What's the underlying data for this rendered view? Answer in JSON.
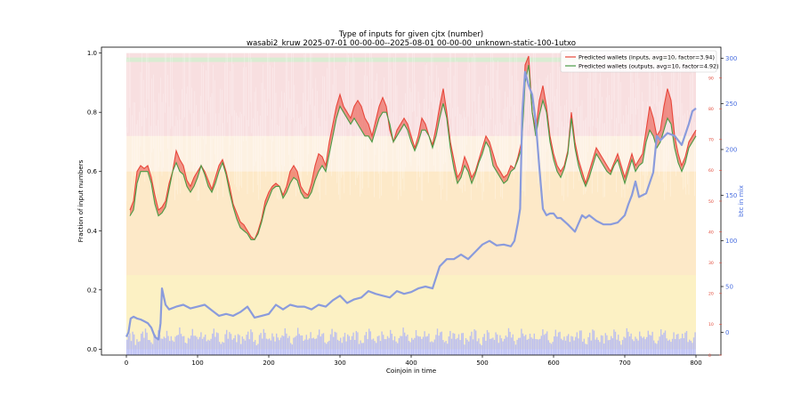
{
  "chart_data": {
    "type": "line",
    "title": "Type of inputs for given cjtx (number)",
    "subtitle": "wasabi2_kruw 2025-07-01 00-00-00--2025-08-01 00-00-00_unknown-static-100-1utxo",
    "xlabel": "Coinjoin in time",
    "ylabel": "Fraction of input numbers",
    "y2label": "btc in mix",
    "xlim": [
      -35,
      835
    ],
    "ylim": [
      -0.02,
      1.02
    ],
    "y2lim": [
      -25,
      312
    ],
    "y3lim": [
      0,
      100
    ],
    "xticks": [
      0,
      100,
      200,
      300,
      400,
      500,
      600,
      700,
      800
    ],
    "yticks": [
      "0.0",
      "0.2",
      "0.4",
      "0.6",
      "0.8",
      "1.0"
    ],
    "y2ticks": [
      0,
      50,
      100,
      150,
      200,
      250,
      300
    ],
    "y3ticks": [
      0,
      10,
      20,
      30,
      40,
      50,
      60,
      70,
      80,
      90
    ],
    "grid": false,
    "legend_position": "top-right",
    "colors": {
      "inputs": "#e8473b",
      "outputs": "#4a9b45",
      "btc": "#8a9bdc",
      "right_axis_btc": "#4a6fe0",
      "right_axis_count": "#e24a3a",
      "band_top": "#f8dfe0",
      "band_mid": "#fdf1e2",
      "band_low": "#fde9c8",
      "band_bottom": "#fcf1c4",
      "bars": "#b4b9f4"
    },
    "series": [
      {
        "name": "Predicted wallets (inputs, avg=10, factor=3.94)",
        "axis": "left",
        "x": [
          5,
          10,
          15,
          20,
          25,
          30,
          35,
          40,
          45,
          50,
          55,
          60,
          65,
          70,
          75,
          80,
          85,
          90,
          95,
          100,
          105,
          110,
          115,
          120,
          125,
          130,
          135,
          140,
          145,
          150,
          155,
          160,
          165,
          170,
          175,
          180,
          185,
          190,
          195,
          200,
          205,
          210,
          215,
          220,
          225,
          230,
          235,
          240,
          245,
          250,
          255,
          260,
          265,
          270,
          275,
          280,
          285,
          290,
          295,
          300,
          305,
          310,
          315,
          320,
          325,
          330,
          335,
          340,
          345,
          350,
          355,
          360,
          365,
          370,
          375,
          380,
          385,
          390,
          395,
          400,
          405,
          410,
          415,
          420,
          425,
          430,
          435,
          440,
          445,
          450,
          455,
          460,
          465,
          470,
          475,
          480,
          485,
          490,
          495,
          500,
          505,
          510,
          515,
          520,
          525,
          530,
          535,
          540,
          545,
          550,
          555,
          560,
          565,
          570,
          575,
          580,
          585,
          590,
          595,
          600,
          605,
          610,
          615,
          620,
          625,
          630,
          635,
          640,
          645,
          650,
          655,
          660,
          665,
          670,
          675,
          680,
          685,
          690,
          695,
          700,
          705,
          710,
          715,
          720,
          725,
          730,
          735,
          740,
          745,
          750,
          755,
          760,
          765,
          770,
          775,
          780,
          785,
          790,
          795,
          800
        ],
        "y": [
          0.47,
          0.5,
          0.6,
          0.62,
          0.61,
          0.62,
          0.58,
          0.52,
          0.47,
          0.48,
          0.5,
          0.56,
          0.6,
          0.67,
          0.64,
          0.62,
          0.57,
          0.55,
          0.58,
          0.6,
          0.62,
          0.6,
          0.57,
          0.54,
          0.58,
          0.62,
          0.64,
          0.6,
          0.55,
          0.49,
          0.46,
          0.43,
          0.42,
          0.4,
          0.38,
          0.37,
          0.4,
          0.44,
          0.5,
          0.53,
          0.55,
          0.56,
          0.55,
          0.52,
          0.55,
          0.6,
          0.62,
          0.6,
          0.55,
          0.53,
          0.52,
          0.56,
          0.62,
          0.66,
          0.65,
          0.62,
          0.7,
          0.76,
          0.82,
          0.86,
          0.82,
          0.8,
          0.78,
          0.82,
          0.84,
          0.82,
          0.78,
          0.76,
          0.72,
          0.77,
          0.82,
          0.85,
          0.82,
          0.74,
          0.7,
          0.74,
          0.76,
          0.78,
          0.76,
          0.72,
          0.68,
          0.72,
          0.78,
          0.76,
          0.72,
          0.69,
          0.75,
          0.82,
          0.88,
          0.8,
          0.7,
          0.64,
          0.58,
          0.6,
          0.65,
          0.62,
          0.58,
          0.6,
          0.64,
          0.68,
          0.72,
          0.7,
          0.66,
          0.62,
          0.6,
          0.58,
          0.59,
          0.62,
          0.61,
          0.65,
          0.7,
          0.96,
          0.99,
          0.8,
          0.74,
          0.84,
          0.89,
          0.82,
          0.72,
          0.66,
          0.62,
          0.6,
          0.62,
          0.67,
          0.8,
          0.7,
          0.64,
          0.6,
          0.56,
          0.6,
          0.64,
          0.68,
          0.66,
          0.64,
          0.62,
          0.6,
          0.63,
          0.66,
          0.62,
          0.58,
          0.62,
          0.66,
          0.62,
          0.64,
          0.66,
          0.74,
          0.82,
          0.78,
          0.72,
          0.74,
          0.82,
          0.88,
          0.84,
          0.72,
          0.66,
          0.62,
          0.65,
          0.7,
          0.72,
          0.74
        ]
      },
      {
        "name": "Predicted wallets (outputs, avg=10, factor=4.92)",
        "axis": "left",
        "x": [
          5,
          10,
          15,
          20,
          25,
          30,
          35,
          40,
          45,
          50,
          55,
          60,
          65,
          70,
          75,
          80,
          85,
          90,
          95,
          100,
          105,
          110,
          115,
          120,
          125,
          130,
          135,
          140,
          145,
          150,
          155,
          160,
          165,
          170,
          175,
          180,
          185,
          190,
          195,
          200,
          205,
          210,
          215,
          220,
          225,
          230,
          235,
          240,
          245,
          250,
          255,
          260,
          265,
          270,
          275,
          280,
          285,
          290,
          295,
          300,
          305,
          310,
          315,
          320,
          325,
          330,
          335,
          340,
          345,
          350,
          355,
          360,
          365,
          370,
          375,
          380,
          385,
          390,
          395,
          400,
          405,
          410,
          415,
          420,
          425,
          430,
          435,
          440,
          445,
          450,
          455,
          460,
          465,
          470,
          475,
          480,
          485,
          490,
          495,
          500,
          505,
          510,
          515,
          520,
          525,
          530,
          535,
          540,
          545,
          550,
          555,
          560,
          565,
          570,
          575,
          580,
          585,
          590,
          595,
          600,
          605,
          610,
          615,
          620,
          625,
          630,
          635,
          640,
          645,
          650,
          655,
          660,
          665,
          670,
          675,
          680,
          685,
          690,
          695,
          700,
          705,
          710,
          715,
          720,
          725,
          730,
          735,
          740,
          745,
          750,
          755,
          760,
          765,
          770,
          775,
          780,
          785,
          790,
          795,
          800
        ],
        "y": [
          0.45,
          0.47,
          0.56,
          0.6,
          0.6,
          0.6,
          0.56,
          0.49,
          0.45,
          0.46,
          0.48,
          0.54,
          0.6,
          0.63,
          0.6,
          0.59,
          0.55,
          0.53,
          0.55,
          0.58,
          0.62,
          0.59,
          0.55,
          0.53,
          0.56,
          0.6,
          0.63,
          0.59,
          0.53,
          0.48,
          0.44,
          0.41,
          0.4,
          0.39,
          0.37,
          0.37,
          0.39,
          0.43,
          0.48,
          0.51,
          0.54,
          0.55,
          0.55,
          0.51,
          0.53,
          0.56,
          0.58,
          0.57,
          0.53,
          0.51,
          0.51,
          0.53,
          0.57,
          0.6,
          0.62,
          0.6,
          0.66,
          0.72,
          0.78,
          0.82,
          0.8,
          0.78,
          0.76,
          0.78,
          0.76,
          0.74,
          0.72,
          0.72,
          0.7,
          0.74,
          0.78,
          0.8,
          0.8,
          0.76,
          0.7,
          0.72,
          0.74,
          0.76,
          0.74,
          0.7,
          0.67,
          0.7,
          0.74,
          0.74,
          0.72,
          0.68,
          0.72,
          0.78,
          0.83,
          0.78,
          0.68,
          0.61,
          0.56,
          0.58,
          0.62,
          0.6,
          0.56,
          0.59,
          0.63,
          0.66,
          0.7,
          0.68,
          0.62,
          0.6,
          0.58,
          0.56,
          0.57,
          0.6,
          0.61,
          0.64,
          0.68,
          0.9,
          0.96,
          0.8,
          0.72,
          0.79,
          0.84,
          0.8,
          0.7,
          0.64,
          0.6,
          0.58,
          0.61,
          0.66,
          0.78,
          0.68,
          0.62,
          0.58,
          0.55,
          0.58,
          0.62,
          0.66,
          0.64,
          0.62,
          0.6,
          0.59,
          0.62,
          0.64,
          0.6,
          0.56,
          0.6,
          0.64,
          0.6,
          0.62,
          0.63,
          0.7,
          0.74,
          0.72,
          0.68,
          0.7,
          0.74,
          0.78,
          0.76,
          0.68,
          0.63,
          0.6,
          0.63,
          0.68,
          0.7,
          0.72
        ]
      },
      {
        "name": "",
        "axis": "right",
        "x": [
          0,
          3,
          6,
          10,
          15,
          20,
          25,
          30,
          35,
          40,
          45,
          48,
          50,
          55,
          60,
          70,
          80,
          90,
          100,
          110,
          120,
          130,
          140,
          150,
          160,
          170,
          180,
          190,
          200,
          210,
          220,
          230,
          240,
          250,
          260,
          270,
          280,
          290,
          300,
          310,
          320,
          330,
          340,
          350,
          360,
          370,
          380,
          390,
          400,
          410,
          420,
          430,
          440,
          450,
          460,
          470,
          480,
          490,
          500,
          505,
          510,
          520,
          530,
          540,
          545,
          550,
          553,
          556,
          560,
          565,
          570,
          575,
          580,
          585,
          590,
          595,
          600,
          605,
          610,
          620,
          630,
          640,
          645,
          650,
          660,
          670,
          680,
          690,
          700,
          705,
          710,
          715,
          720,
          730,
          740,
          745,
          750,
          760,
          770,
          780,
          790,
          795,
          800
        ],
        "y": [
          -5,
          0,
          15,
          17,
          15,
          14,
          12,
          10,
          5,
          -5,
          -8,
          10,
          48,
          30,
          25,
          28,
          30,
          26,
          28,
          30,
          24,
          18,
          20,
          18,
          22,
          28,
          16,
          18,
          20,
          30,
          25,
          30,
          28,
          28,
          25,
          30,
          28,
          35,
          40,
          32,
          36,
          38,
          45,
          42,
          40,
          38,
          45,
          42,
          44,
          48,
          50,
          48,
          72,
          80,
          80,
          85,
          80,
          88,
          96,
          98,
          100,
          95,
          96,
          94,
          100,
          120,
          135,
          240,
          285,
          270,
          260,
          230,
          180,
          135,
          128,
          130,
          130,
          125,
          125,
          118,
          110,
          128,
          125,
          128,
          122,
          118,
          118,
          120,
          128,
          140,
          150,
          165,
          148,
          152,
          175,
          215,
          210,
          218,
          215,
          205,
          228,
          242,
          245
        ]
      }
    ]
  },
  "legend": [
    {
      "label": "Predicted wallets (inputs, avg=10, factor=3.94)",
      "color": "#e8473b"
    },
    {
      "label": "Predicted wallets (outputs, avg=10, factor=4.92)",
      "color": "#4a9b45"
    }
  ]
}
